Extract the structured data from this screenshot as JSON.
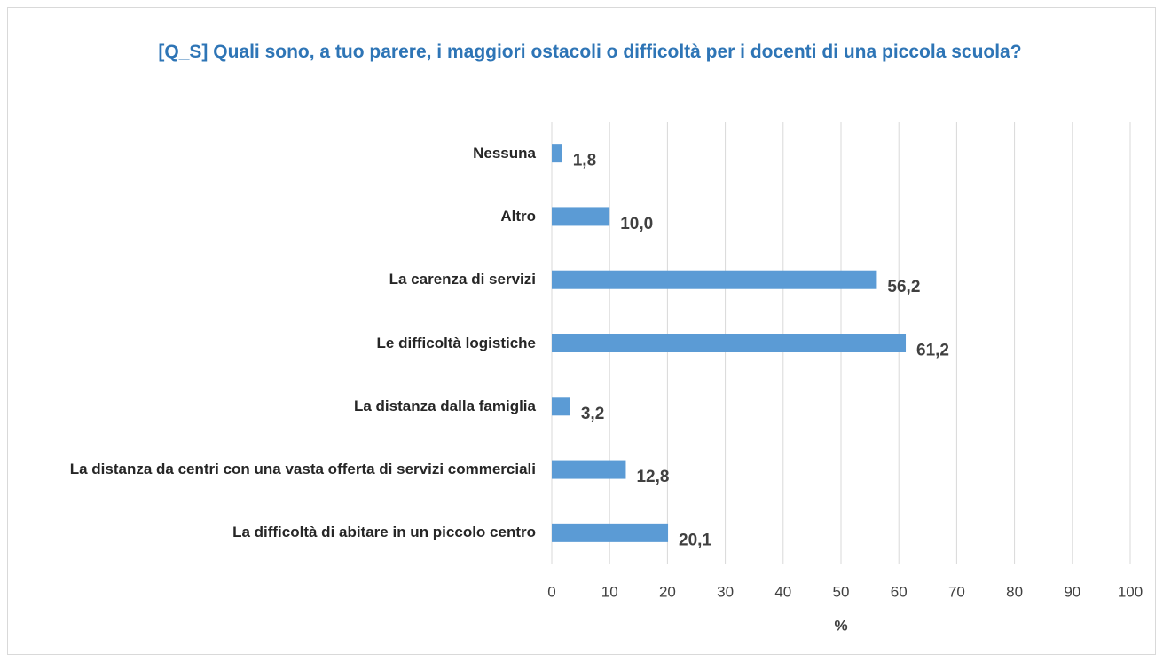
{
  "chart_data": {
    "type": "hbar",
    "title": "[Q_S] Quali sono, a tuo parere, i maggiori ostacoli o difficoltà per i docenti di una piccola scuola?",
    "categories": [
      "Nessuna",
      "Altro",
      "La carenza di servizi",
      "Le difficoltà logistiche",
      "La distanza dalla famiglia",
      "La distanza da centri con una vasta offerta di servizi commerciali",
      "La difficoltà di abitare in un piccolo centro"
    ],
    "values": [
      1.8,
      10.0,
      56.2,
      61.2,
      3.2,
      12.8,
      20.1
    ],
    "value_labels": [
      "1,8",
      "10,0",
      "56,2",
      "61,2",
      "3,2",
      "12,8",
      "20,1"
    ],
    "color": "#5b9bd5",
    "xlim": [
      0,
      100
    ],
    "xticks": [
      0,
      10,
      20,
      30,
      40,
      50,
      60,
      70,
      80,
      90,
      100
    ],
    "xlabel": "%",
    "grid": true
  }
}
